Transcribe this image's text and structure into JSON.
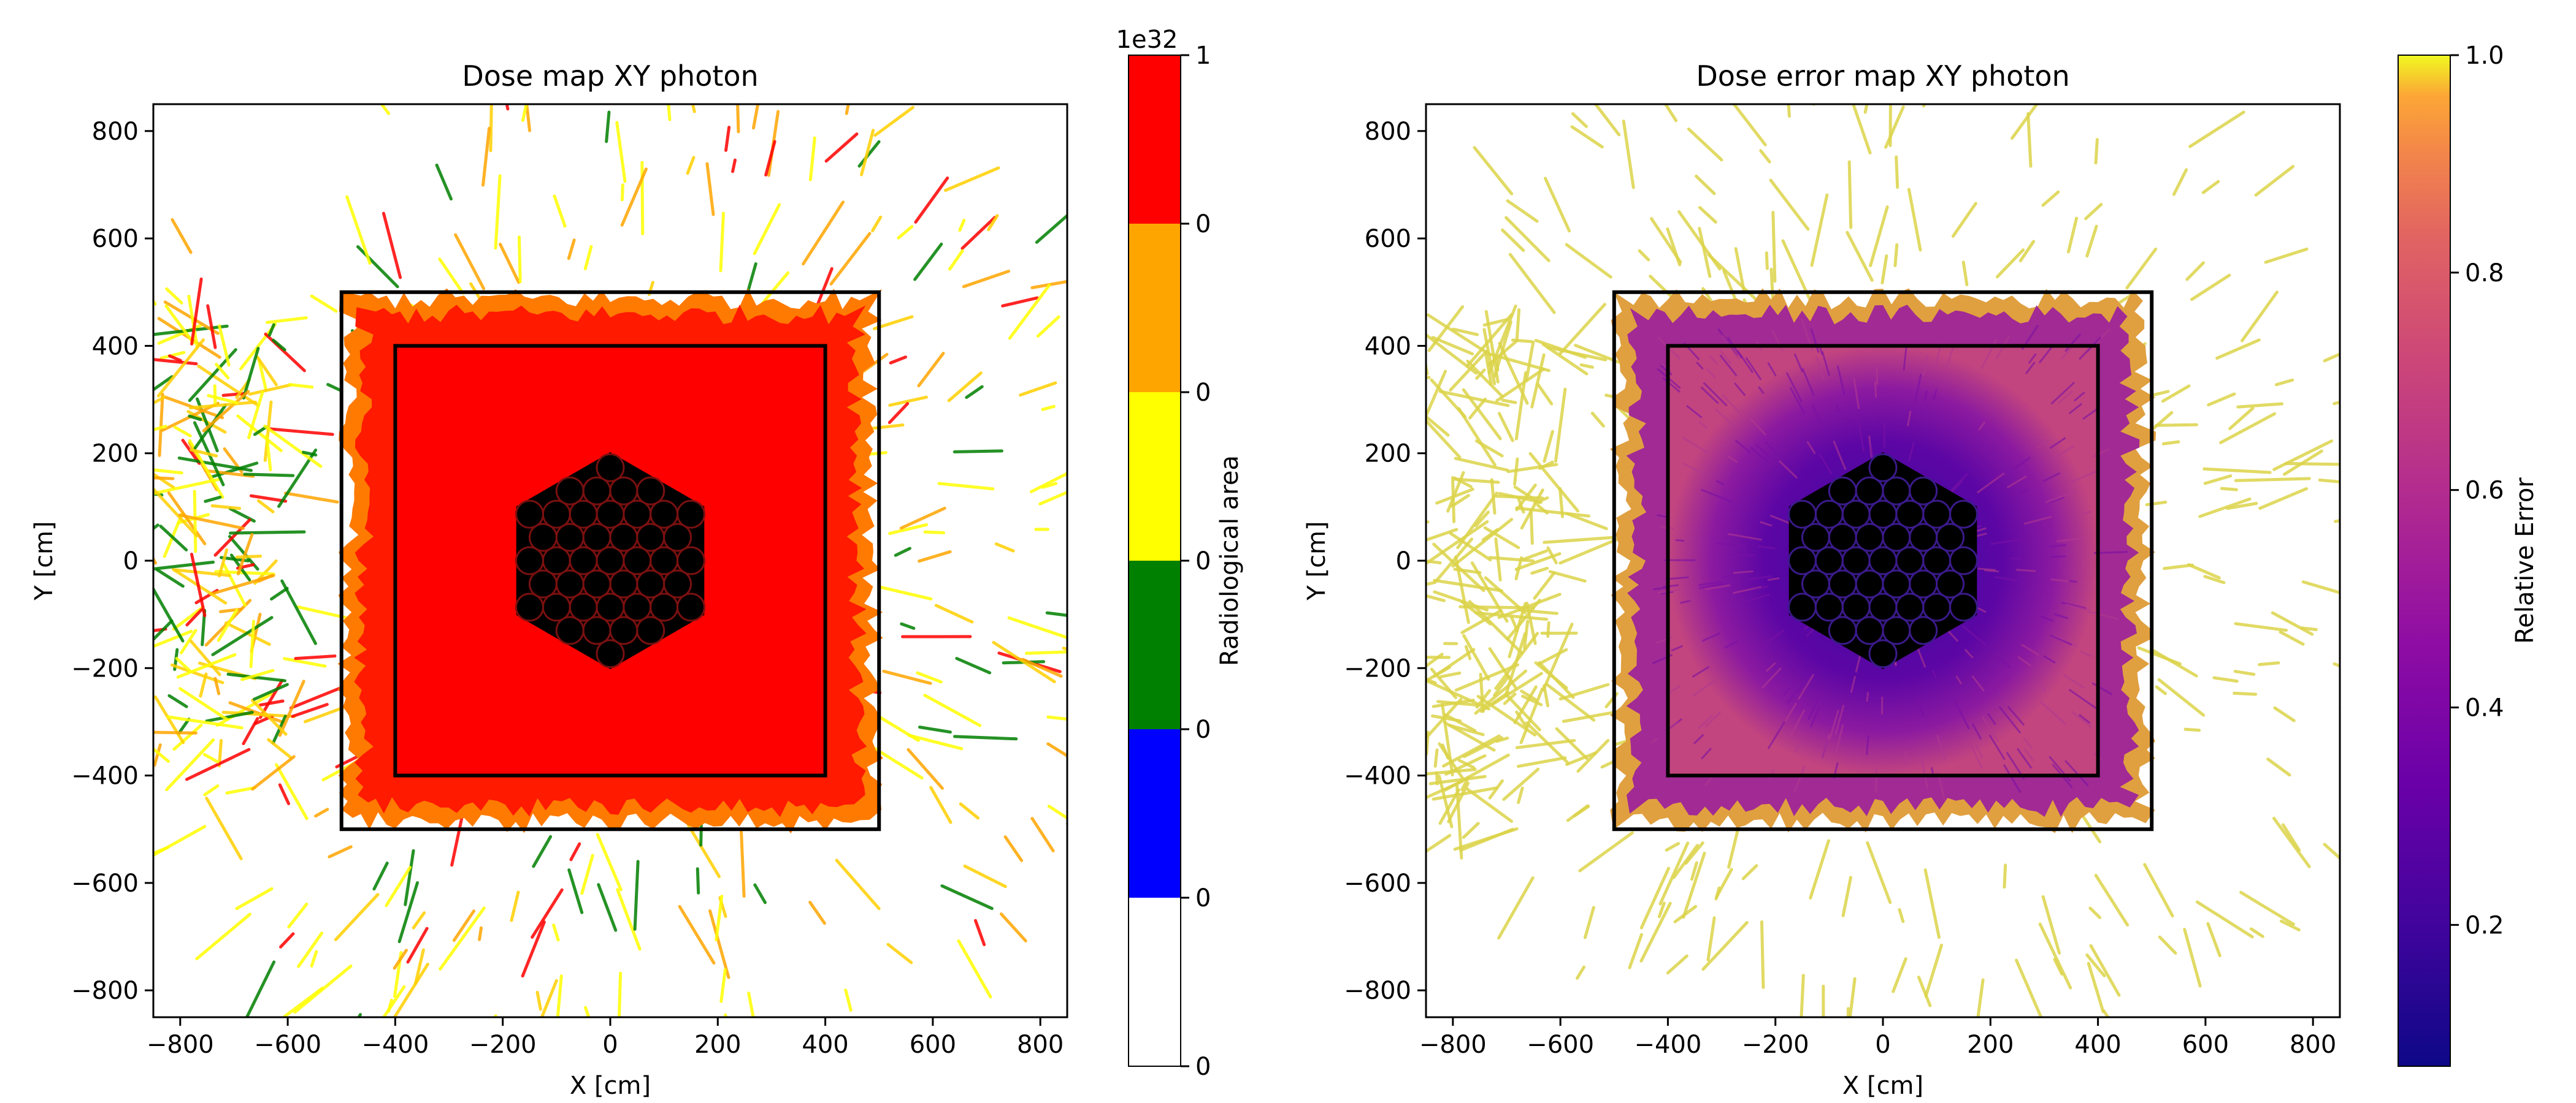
{
  "chart_data": [
    {
      "type": "heatmap",
      "title": "Dose map XY photon",
      "xlabel": "X [cm]",
      "ylabel": "Y [cm]",
      "xlim": [
        -850,
        850
      ],
      "ylim": [
        -850,
        850
      ],
      "xticks": [
        -800,
        -600,
        -400,
        -200,
        0,
        200,
        400,
        600,
        800
      ],
      "yticks": [
        -800,
        -600,
        -400,
        -200,
        0,
        200,
        400,
        600,
        800
      ],
      "outer_square": {
        "xmin": -500,
        "xmax": 500,
        "ymin": -500,
        "ymax": 500
      },
      "inner_square": {
        "xmin": -400,
        "xmax": 400,
        "ymin": -400,
        "ymax": 400
      },
      "hexagon": {
        "center": [
          0,
          0
        ],
        "radius": 200
      },
      "colorbar": {
        "label": "Radiological area",
        "offset_text": "1e32",
        "type": "categorical",
        "bands": [
          {
            "color": "#ffffff",
            "label": "0"
          },
          {
            "color": "#0000ff",
            "label": "0"
          },
          {
            "color": "#008000",
            "label": "0"
          },
          {
            "color": "#ffff00",
            "label": "0"
          },
          {
            "color": "#ffa500",
            "label": "0"
          },
          {
            "color": "#ff0000",
            "label": "0"
          }
        ],
        "top_label": "1"
      }
    },
    {
      "type": "heatmap",
      "title": "Dose error map XY photon",
      "xlabel": "X [cm]",
      "ylabel": "Y [cm]",
      "xlim": [
        -850,
        850
      ],
      "ylim": [
        -850,
        850
      ],
      "xticks": [
        -800,
        -600,
        -400,
        -200,
        0,
        200,
        400,
        600,
        800
      ],
      "yticks": [
        -800,
        -600,
        -400,
        -200,
        0,
        200,
        400,
        600,
        800
      ],
      "outer_square": {
        "xmin": -500,
        "xmax": 500,
        "ymin": -500,
        "ymax": 500
      },
      "inner_square": {
        "xmin": -400,
        "xmax": 400,
        "ymin": -400,
        "ymax": 400
      },
      "hexagon": {
        "center": [
          0,
          0
        ],
        "radius": 200
      },
      "colorbar": {
        "label": "Relative Error",
        "type": "continuous",
        "colormap": "plasma",
        "range": [
          0.07,
          1.0
        ],
        "ticks": [
          0.2,
          0.4,
          0.6,
          0.8,
          1.0
        ],
        "tick_labels": [
          "0.2",
          "0.4",
          "0.6",
          "0.8",
          "1.0"
        ]
      }
    }
  ]
}
